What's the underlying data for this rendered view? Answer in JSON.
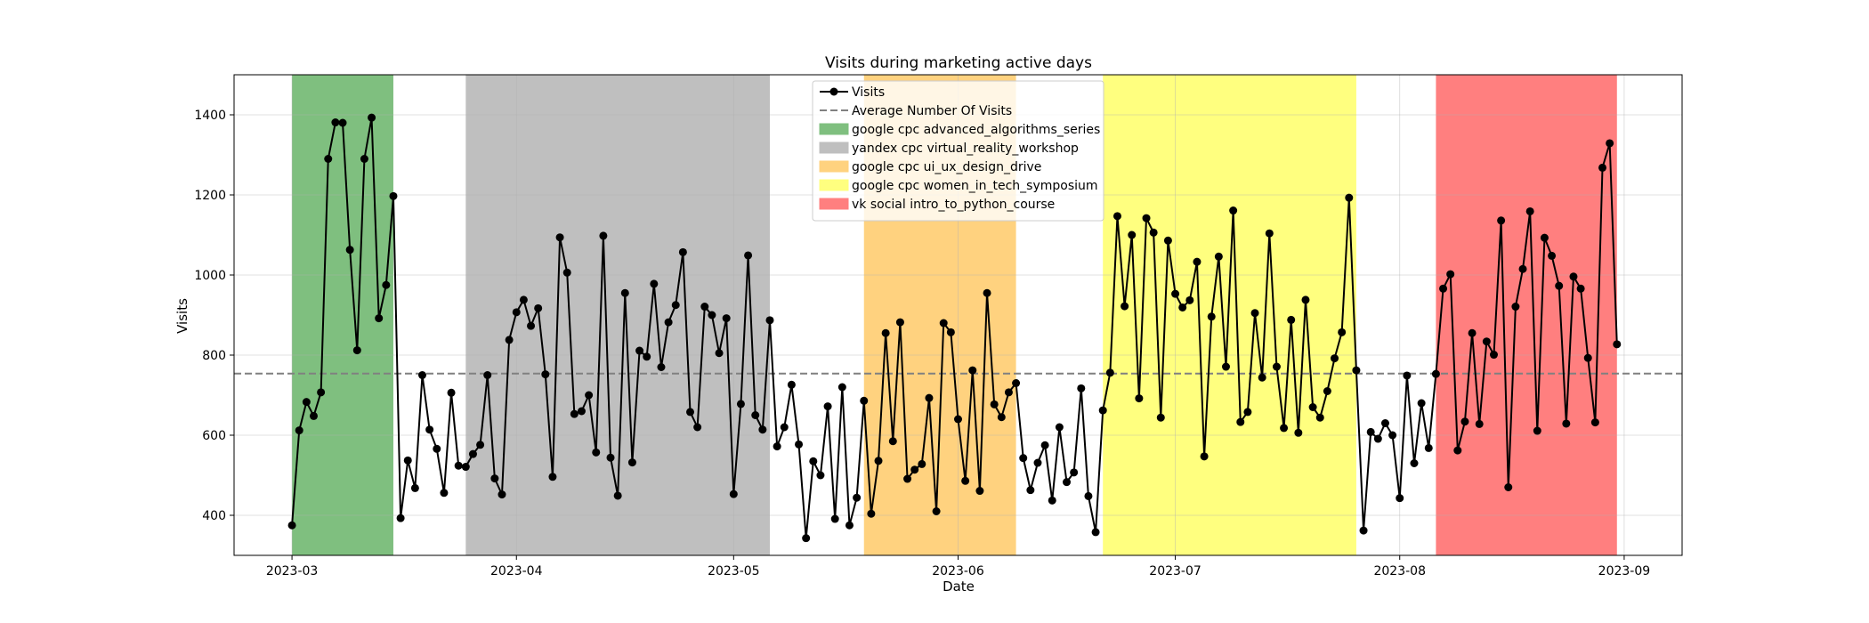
{
  "chart_data": {
    "type": "line",
    "title": "Visits during marketing active days",
    "xlabel": "Date",
    "ylabel": "Visits",
    "x_start": "2023-03-01",
    "x_end": "2023-08-31",
    "xlim": [
      "2022-02-21",
      "2023-09-09"
    ],
    "ylim": [
      300,
      1500
    ],
    "x_ticks": [
      {
        "date": "2023-03-01",
        "label": "2023-03"
      },
      {
        "date": "2023-04-01",
        "label": "2023-04"
      },
      {
        "date": "2023-05-01",
        "label": "2023-05"
      },
      {
        "date": "2023-06-01",
        "label": "2023-06"
      },
      {
        "date": "2023-07-01",
        "label": "2023-07"
      },
      {
        "date": "2023-08-01",
        "label": "2023-08"
      },
      {
        "date": "2023-09-01",
        "label": "2023-09"
      }
    ],
    "y_ticks": [
      400,
      600,
      800,
      1000,
      1200,
      1400
    ],
    "grid": true,
    "legend_position": "top-center",
    "series": [
      {
        "name": "Visits",
        "color": "#000000",
        "marker": "circle",
        "values": [
          375,
          612,
          683,
          648,
          707,
          1290,
          1381,
          1380,
          1063,
          812,
          1290,
          1393,
          892,
          975,
          1197,
          393,
          537,
          468,
          750,
          614,
          566,
          456,
          706,
          524,
          521,
          553,
          576,
          750,
          492,
          452,
          838,
          907,
          938,
          873,
          917,
          752,
          496,
          1094,
          1006,
          653,
          660,
          700,
          557,
          1098,
          544,
          449,
          955,
          532,
          811,
          796,
          978,
          770,
          882,
          925,
          1057,
          658,
          620,
          921,
          900,
          805,
          892,
          453,
          678,
          1049,
          650,
          614,
          887,
          572,
          620,
          726,
          577,
          343,
          535,
          500,
          672,
          391,
          720,
          375,
          444,
          686,
          404,
          536,
          855,
          585,
          882,
          491,
          514,
          528,
          693,
          410,
          880,
          857,
          640,
          486,
          762,
          461,
          955,
          677,
          645,
          707,
          730,
          543,
          463,
          531,
          575,
          437,
          620,
          483,
          507,
          717,
          448,
          358,
          662,
          756,
          1147,
          922,
          1100,
          692,
          1142,
          1106,
          644,
          1086,
          953,
          919,
          937,
          1033,
          547,
          896,
          1046,
          771,
          1161,
          633,
          658,
          905,
          744,
          1104,
          771,
          618,
          888,
          606,
          938,
          670,
          644,
          710,
          792,
          857,
          1193,
          762,
          362,
          608,
          591,
          630,
          600,
          443,
          749,
          530,
          680,
          568,
          753,
          966,
          1002,
          562,
          634,
          855,
          628,
          834,
          801,
          1136,
          470,
          921,
          1015,
          1159,
          611,
          1093,
          1048,
          973,
          629,
          996,
          966,
          793,
          632,
          1268,
          1329,
          827
        ]
      }
    ],
    "average_line": {
      "name": "Average Number Of Visits",
      "value": 754,
      "color": "#808080"
    },
    "spans": [
      {
        "name": "google cpc advanced_algorithms_series",
        "start": "2023-03-01",
        "end": "2023-03-15",
        "color": "#7fbf7f"
      },
      {
        "name": "yandex cpc virtual_reality_workshop",
        "start": "2023-03-25",
        "end": "2023-05-06",
        "color": "#bfbfbf"
      },
      {
        "name": "google cpc ui_ux_design_drive",
        "start": "2023-05-19",
        "end": "2023-06-09",
        "color": "#ffd27f"
      },
      {
        "name": "google cpc women_in_tech_symposium",
        "start": "2023-06-21",
        "end": "2023-07-26",
        "color": "#ffff7f"
      },
      {
        "name": "vk social intro_to_python_course",
        "start": "2023-08-06",
        "end": "2023-08-31",
        "color": "#ff7f7f"
      }
    ]
  }
}
